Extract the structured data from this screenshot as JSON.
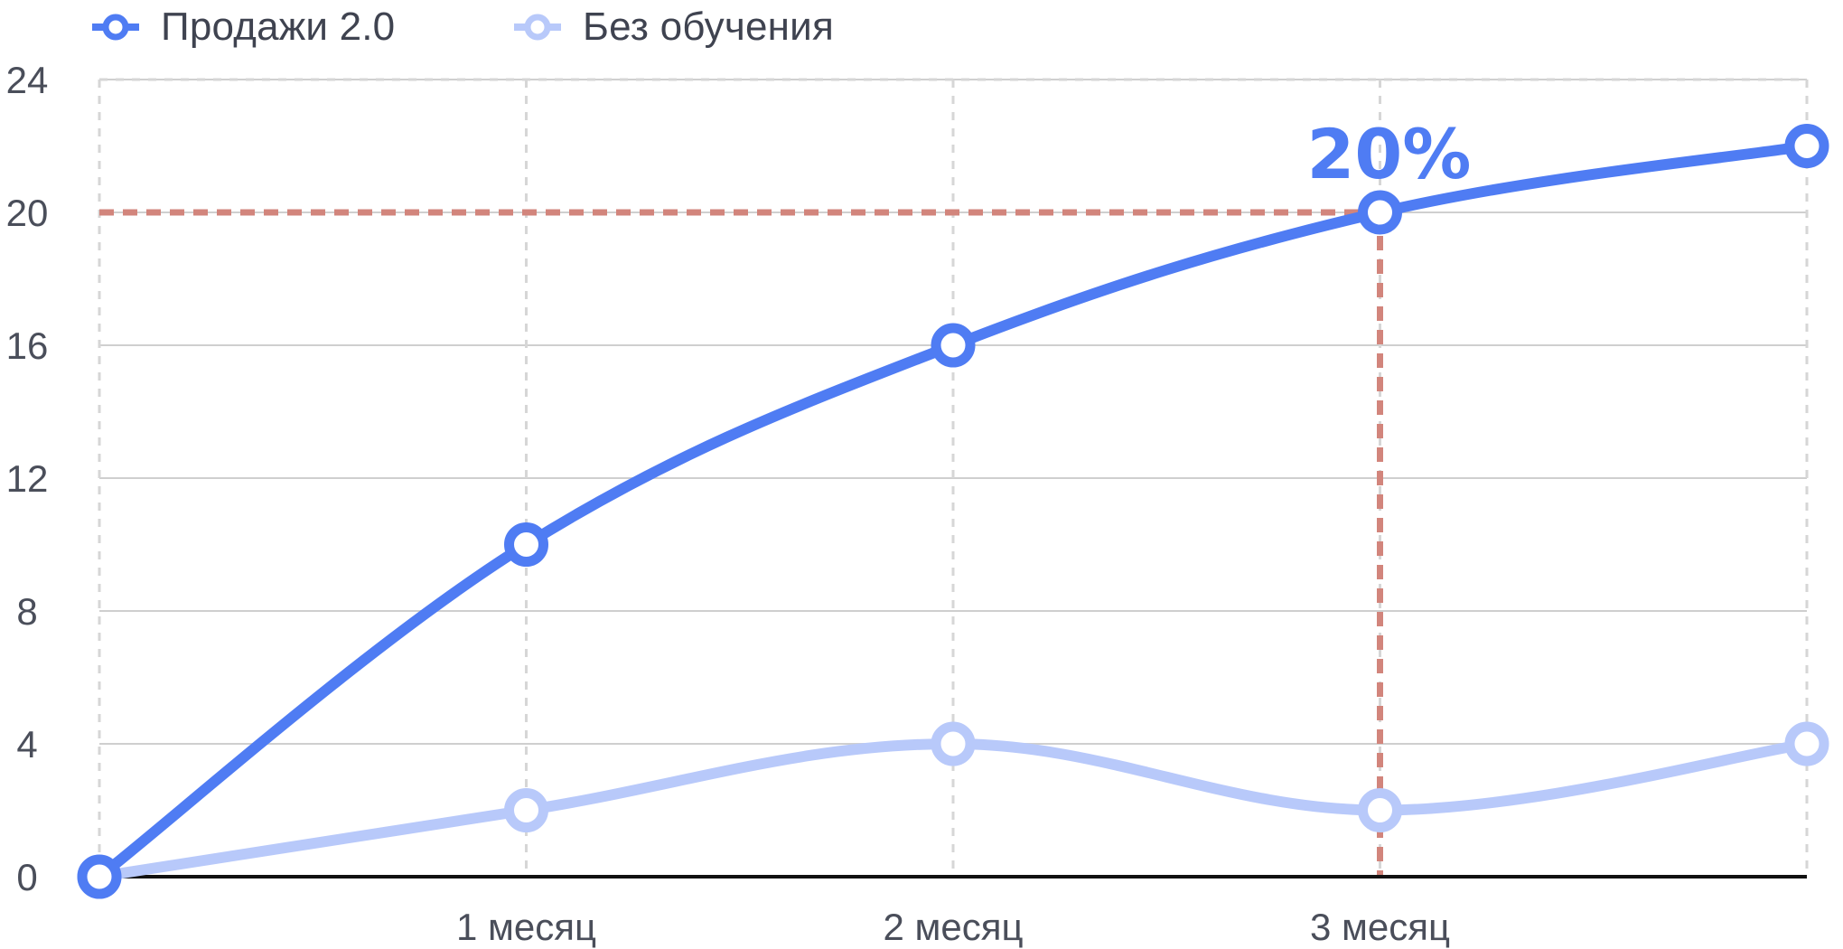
{
  "legend": {
    "items": [
      {
        "label": "Продажи 2.0",
        "color": "#4f7cf3"
      },
      {
        "label": "Без обучения",
        "color": "#b8c9fa"
      }
    ]
  },
  "chart_data": {
    "type": "line",
    "x": [
      "",
      "1 месяц",
      "2 месяц",
      "3 месяц",
      ""
    ],
    "y_ticks": [
      0,
      4,
      8,
      12,
      16,
      20,
      24
    ],
    "ylim": [
      0,
      24
    ],
    "grid": true,
    "legend_position": "top-left",
    "series": [
      {
        "name": "Продажи 2.0",
        "values": [
          0,
          10,
          16,
          20,
          22
        ],
        "color": "#4f7cf3"
      },
      {
        "name": "Без обучения",
        "values": [
          0,
          2,
          4,
          2,
          4
        ],
        "color": "#b8c9fa"
      }
    ],
    "reference": {
      "x_index": 3,
      "y": 20,
      "color": "#d2857c"
    },
    "annotation": {
      "text": "20%",
      "x_index": 3,
      "y": 20,
      "color": "#4f7cf3"
    }
  }
}
